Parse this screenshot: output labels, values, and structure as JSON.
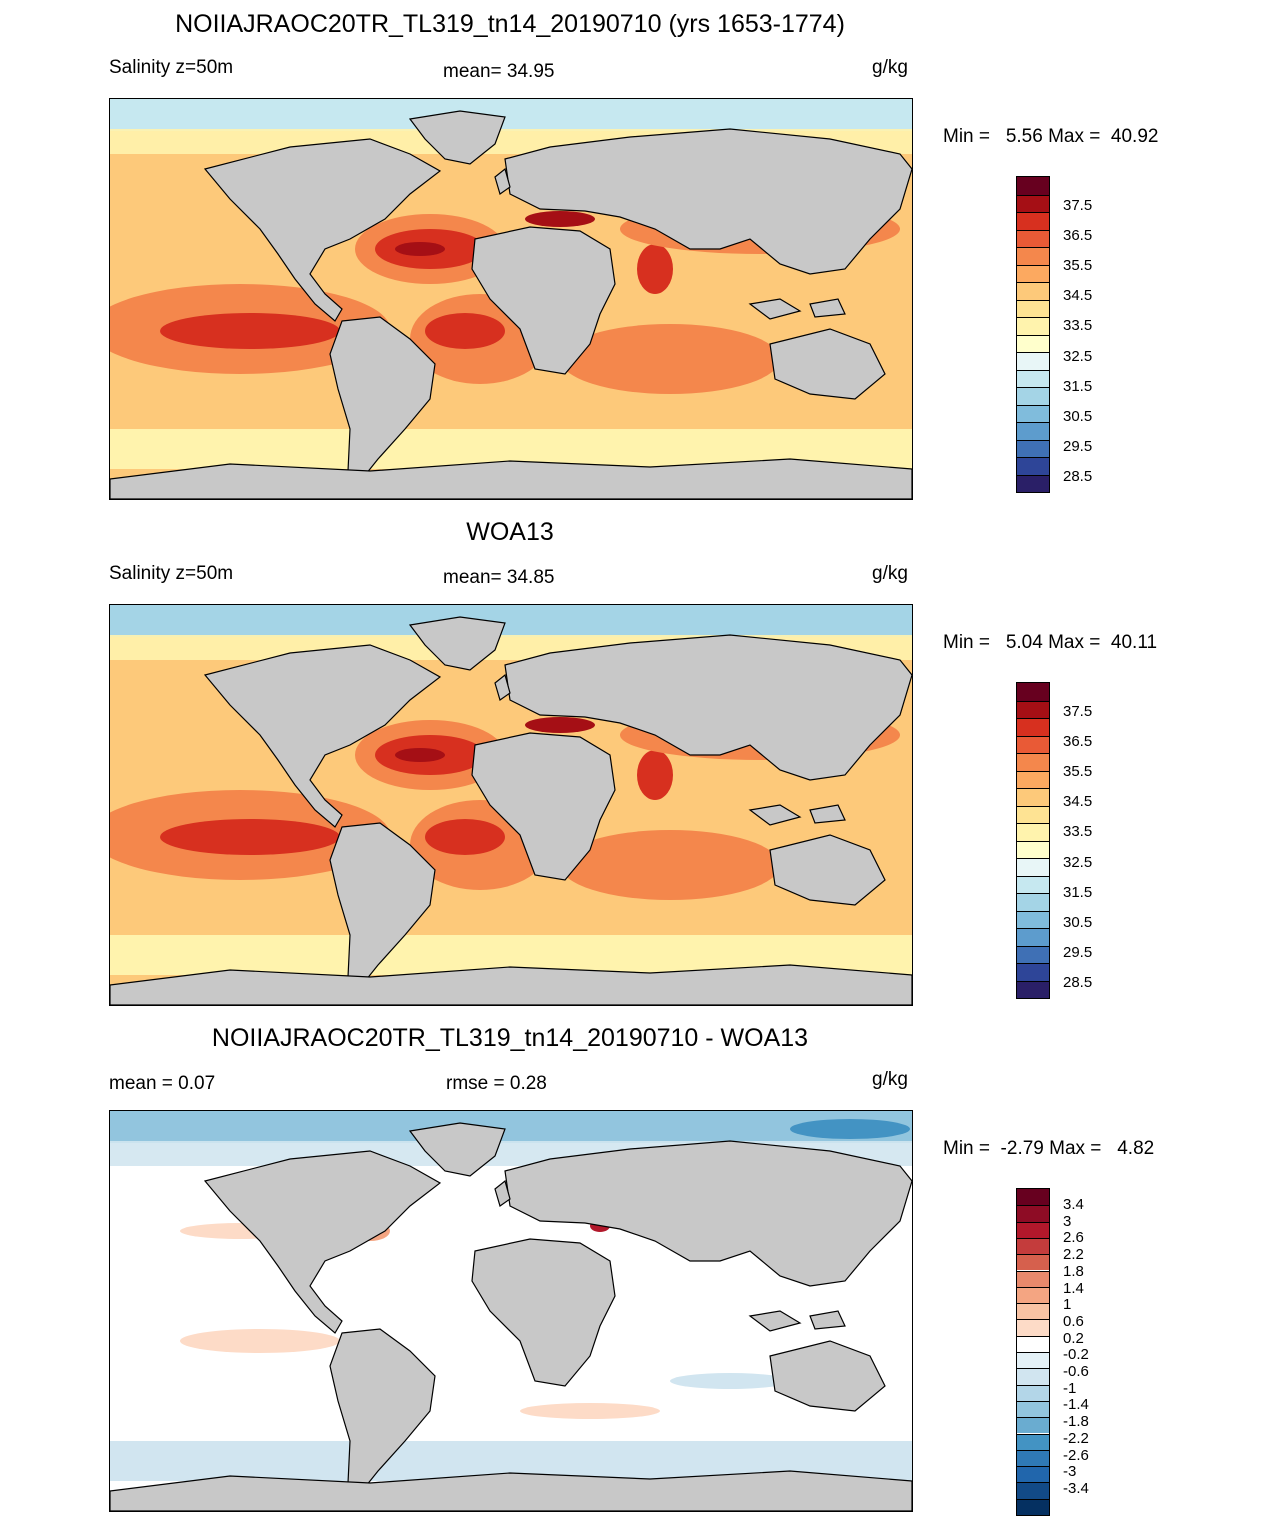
{
  "panels": [
    {
      "id": "model",
      "title": "NOIIAJRAOC20TR_TL319_tn14_20190710 (yrs 1653-1774)",
      "left_label": "Salinity z=50m",
      "center_label": "mean=  34.95",
      "right_label": "g/kg",
      "min_max": "Min =   5.56 Max =  40.92",
      "colorbar": {
        "colors": [
          "#67001f",
          "#a50f15",
          "#d7301f",
          "#e95a36",
          "#f4874c",
          "#fca960",
          "#fdc97a",
          "#fee393",
          "#fff3ad",
          "#ffffcc",
          "#e8f6f7",
          "#c6e8f0",
          "#a4d4e6",
          "#80bcdc",
          "#5d9ccd",
          "#3f70b5",
          "#2e4598",
          "#2a1f67"
        ],
        "labels": [
          "37.5",
          "36.5",
          "35.5",
          "34.5",
          "33.5",
          "32.5",
          "31.5",
          "30.5",
          "29.5",
          "28.5"
        ]
      },
      "map_colors": {
        "ocean": "#fdc97a",
        "subtrop": "#f4874c",
        "core": "#d7301f",
        "peak": "#a50f15",
        "polar": "#c6e8f0",
        "subpolar": "#fff3ad"
      }
    },
    {
      "id": "obs",
      "title": "WOA13",
      "left_label": "Salinity z=50m",
      "center_label": "mean=  34.85",
      "right_label": "g/kg",
      "min_max": "Min =   5.04 Max =  40.11",
      "colorbar": {
        "colors": [
          "#67001f",
          "#a50f15",
          "#d7301f",
          "#e95a36",
          "#f4874c",
          "#fca960",
          "#fdc97a",
          "#fee393",
          "#fff3ad",
          "#ffffcc",
          "#e8f6f7",
          "#c6e8f0",
          "#a4d4e6",
          "#80bcdc",
          "#5d9ccd",
          "#3f70b5",
          "#2e4598",
          "#2a1f67"
        ],
        "labels": [
          "37.5",
          "36.5",
          "35.5",
          "34.5",
          "33.5",
          "32.5",
          "31.5",
          "30.5",
          "29.5",
          "28.5"
        ]
      },
      "map_colors": {
        "ocean": "#fdc97a",
        "subtrop": "#f4874c",
        "core": "#d7301f",
        "peak": "#a50f15",
        "polar": "#a4d4e6",
        "subpolar": "#fff3ad"
      }
    },
    {
      "id": "diff",
      "title": "NOIIAJRAOC20TR_TL319_tn14_20190710 - WOA13",
      "left_label": "mean =   0.07",
      "center_label": "rmse =   0.28",
      "right_label": "g/kg",
      "min_max": "Min =  -2.79 Max =   4.82",
      "colorbar": {
        "colors": [
          "#67001f",
          "#8e0c25",
          "#b2182b",
          "#c43c3c",
          "#d6604d",
          "#e8896c",
          "#f4a582",
          "#f8c3a4",
          "#fddbc7",
          "#ffffff",
          "#e4f1f7",
          "#d1e5f0",
          "#b3d6e8",
          "#92c5de",
          "#6aacd0",
          "#4393c3",
          "#2f79b5",
          "#2166ac",
          "#124a87",
          "#053061"
        ],
        "labels": [
          "3.4",
          "3",
          "2.6",
          "2.2",
          "1.8",
          "1.4",
          "1",
          "0.6",
          "0.2",
          "-0.2",
          "-0.6",
          "-1",
          "-1.4",
          "-1.8",
          "-2.2",
          "-2.6",
          "-3",
          "-3.4"
        ]
      },
      "map_colors": {
        "ocean": "#ffffff",
        "subtrop": "#fddbc7",
        "core": "#f4a582",
        "peak": "#b2182b",
        "polar": "#92c5de",
        "subpolar": "#d1e5f0"
      }
    }
  ]
}
